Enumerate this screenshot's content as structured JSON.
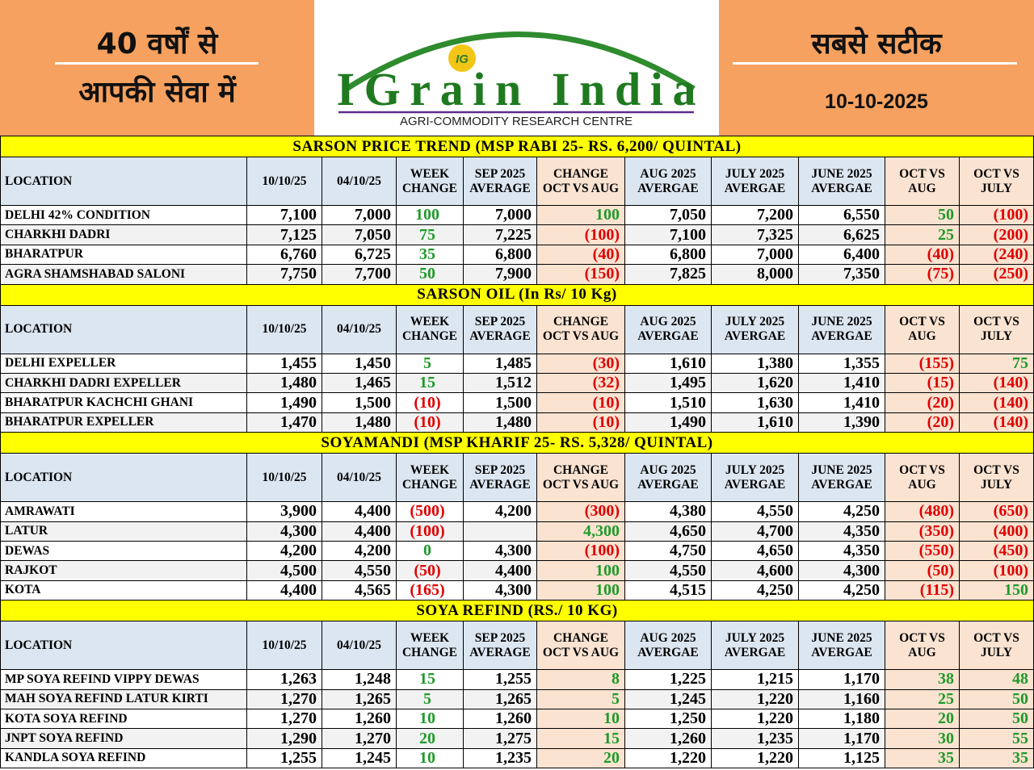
{
  "header": {
    "left_lines": [
      "40 वर्षों से",
      "आपकी सेवा में"
    ],
    "logo": {
      "icon": "IG",
      "name": "IGrain India",
      "tagline": "AGRI-COMMODITY RESEARCH CENTRE"
    },
    "right": {
      "title": "सबसे सटीक",
      "date": "10-10-2025"
    }
  },
  "sections": [
    {
      "title": "SARSON PRICE TREND (MSP RABI 25- RS. 6,200/ QUINTAL)",
      "header": [
        "LOCATION",
        "10/10/25",
        "04/10/25",
        "WEEK CHANGE",
        "SEP 2025 AVERAGE",
        "CHANGE OCT VS AUG",
        "AUG 2025 AVERGAE",
        "JULY 2025 AVERGAE",
        "JUNE 2025 AVERGAE",
        "OCT VS AUG",
        "OCT VS JULY"
      ],
      "rows": [
        [
          "DELHI 42% CONDITION",
          "7,100",
          "7,000",
          "100",
          "7,000",
          "100",
          "7,050",
          "7,200",
          "6,550",
          "50",
          "(100)"
        ],
        [
          "CHARKHI DADRI",
          "7,125",
          "7,050",
          "75",
          "7,225",
          "(100)",
          "7,100",
          "7,325",
          "6,625",
          "25",
          "(200)"
        ],
        [
          "BHARATPUR",
          "6,760",
          "6,725",
          "35",
          "6,800",
          "(40)",
          "6,800",
          "7,000",
          "6,400",
          "(40)",
          "(240)"
        ],
        [
          "AGRA SHAMSHABAD SALONI",
          "7,750",
          "7,700",
          "50",
          "7,900",
          "(150)",
          "7,825",
          "8,000",
          "7,350",
          "(75)",
          "(250)"
        ]
      ]
    },
    {
      "title": "SARSON OIL (In Rs/ 10 Kg)",
      "header": [
        "LOCATION",
        "10/10/25",
        "04/10/25",
        "WEEK CHANGE",
        "SEP 2025 AVERAGE",
        "CHANGE OCT VS AUG",
        "AUG 2025 AVERGAE",
        "JULY 2025 AVERGAE",
        "JUNE 2025 AVERGAE",
        "OCT VS AUG",
        "OCT VS JULY"
      ],
      "rows": [
        [
          "DELHI EXPELLER",
          "1,455",
          "1,450",
          "5",
          "1,485",
          "(30)",
          "1,610",
          "1,380",
          "1,355",
          "(155)",
          "75"
        ],
        [
          "CHARKHI DADRI EXPELLER",
          "1,480",
          "1,465",
          "15",
          "1,512",
          "(32)",
          "1,495",
          "1,620",
          "1,410",
          "(15)",
          "(140)"
        ],
        [
          "BHARATPUR KACHCHI GHANI",
          "1,490",
          "1,500",
          "(10)",
          "1,500",
          "(10)",
          "1,510",
          "1,630",
          "1,410",
          "(20)",
          "(140)"
        ],
        [
          "BHARATPUR EXPELLER",
          "1,470",
          "1,480",
          "(10)",
          "1,480",
          "(10)",
          "1,490",
          "1,610",
          "1,390",
          "(20)",
          "(140)"
        ]
      ]
    },
    {
      "title": "SOYAMANDI (MSP KHARIF 25- RS. 5,328/ QUINTAL)",
      "header": [
        "LOCATION",
        "10/10/25",
        "04/10/25",
        "WEEK CHANGE",
        "SEP 2025 AVERAGE",
        "CHANGE OCT VS AUG",
        "AUG 2025 AVERGAE",
        "JULY 2025 AVERGAE",
        "JUNE 2025 AVERGAE",
        "OCT VS AUG",
        "OCT VS JULY"
      ],
      "rows": [
        [
          "AMRAWATI",
          "3,900",
          "4,400",
          "(500)",
          "4,200",
          "(300)",
          "4,380",
          "4,550",
          "4,250",
          "(480)",
          "(650)"
        ],
        [
          "LATUR",
          "4,300",
          "4,400",
          "(100)",
          null,
          "4,300",
          "4,650",
          "4,700",
          "4,350",
          "(350)",
          "(400)"
        ],
        [
          "DEWAS",
          "4,200",
          "4,200",
          "0",
          "4,300",
          "(100)",
          "4,750",
          "4,650",
          "4,350",
          "(550)",
          "(450)"
        ],
        [
          "RAJKOT",
          "4,500",
          "4,550",
          "(50)",
          "4,400",
          "100",
          "4,550",
          "4,600",
          "4,300",
          "(50)",
          "(100)"
        ],
        [
          "KOTA",
          "4,400",
          "4,565",
          "(165)",
          "4,300",
          "100",
          "4,515",
          "4,250",
          "4,250",
          "(115)",
          "150"
        ]
      ]
    },
    {
      "title": "SOYA REFIND (RS./ 10 KG)",
      "header": [
        "LOCATION",
        "10/10/25",
        "04/10/25",
        "WEEK CHANGE",
        "SEP 2025 AVERAGE",
        "CHANGE OCT VS AUG",
        "AUG 2025 AVERGAE",
        "JULY 2025 AVERGAE",
        "JUNE 2025 AVERGAE",
        "OCT VS AUG",
        "OCT VS JULY"
      ],
      "rows": [
        [
          "MP SOYA REFIND VIPPY DEWAS",
          "1,263",
          "1,248",
          "15",
          "1,255",
          "8",
          "1,225",
          "1,215",
          "1,170",
          "38",
          "48"
        ],
        [
          "MAH SOYA REFIND LATUR KIRTI",
          "1,270",
          "1,265",
          "5",
          "1,265",
          "5",
          "1,245",
          "1,220",
          "1,160",
          "25",
          "50"
        ],
        [
          "KOTA SOYA REFIND",
          "1,270",
          "1,260",
          "10",
          "1,260",
          "10",
          "1,250",
          "1,220",
          "1,180",
          "20",
          "50"
        ],
        [
          "JNPT SOYA REFIND",
          "1,290",
          "1,270",
          "20",
          "1,275",
          "15",
          "1,260",
          "1,235",
          "1,170",
          "30",
          "55"
        ],
        [
          "KANDLA SOYA REFIND",
          "1,255",
          "1,245",
          "10",
          "1,235",
          "20",
          "1,220",
          "1,220",
          "1,125",
          "35",
          "35"
        ]
      ]
    }
  ]
}
